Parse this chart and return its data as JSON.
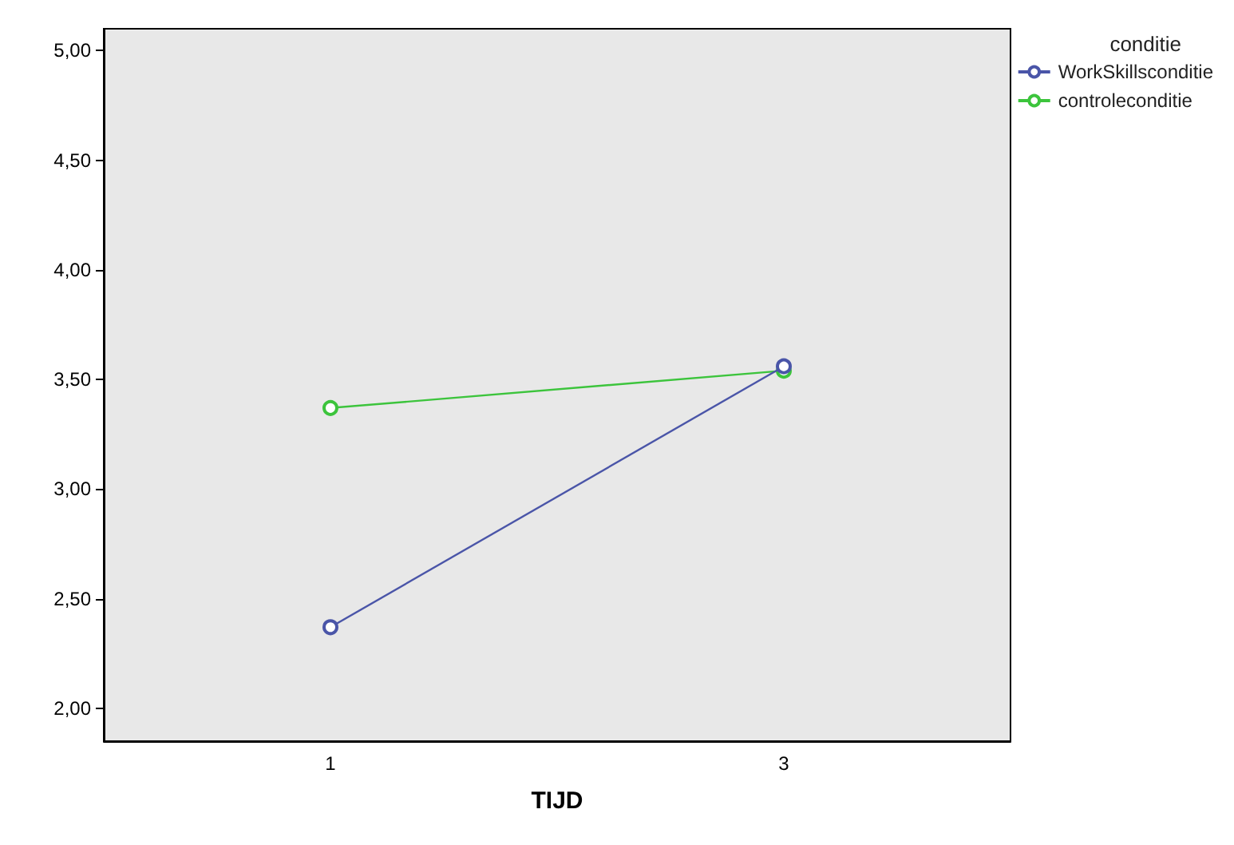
{
  "chart_data": {
    "type": "line",
    "xlabel": "TIJD",
    "categories": [
      "1",
      "3"
    ],
    "series": [
      {
        "name": "WorkSkillsconditie",
        "color": "#4a55a8",
        "values": [
          2.37,
          3.56
        ]
      },
      {
        "name": "controleconditie",
        "color": "#3cc43c",
        "values": [
          3.37,
          3.54
        ]
      }
    ],
    "ylim": [
      1.85,
      5.1
    ],
    "yticks": [
      {
        "value": 2,
        "label": "2,00"
      },
      {
        "value": 2.5,
        "label": "2,50"
      },
      {
        "value": 3,
        "label": "3,00"
      },
      {
        "value": 3.5,
        "label": "3,50"
      },
      {
        "value": 4,
        "label": "4,00"
      },
      {
        "value": 4.5,
        "label": "4,50"
      },
      {
        "value": 5,
        "label": "5,00"
      }
    ],
    "legend": "top right",
    "legend_title": "conditie",
    "marker": "circle",
    "line_style": "solid",
    "grid": false
  }
}
